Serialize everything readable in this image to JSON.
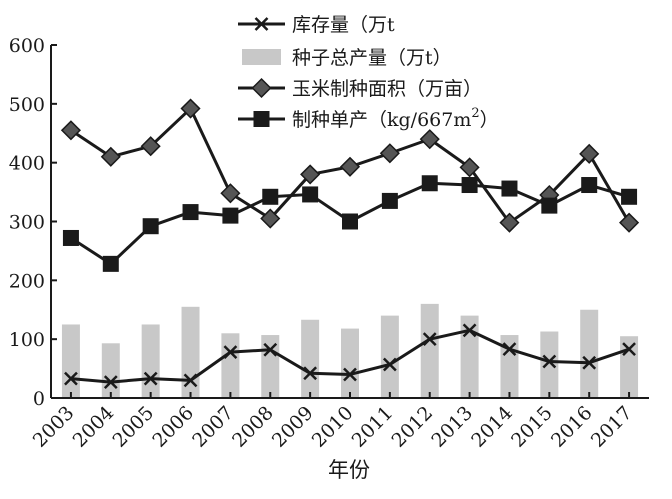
{
  "chart_data": {
    "type": "bar",
    "categories": [
      "2003",
      "2004",
      "2005",
      "2006",
      "2007",
      "2008",
      "2009",
      "2010",
      "2011",
      "2012",
      "2013",
      "2014",
      "2015",
      "2016",
      "2017"
    ],
    "xlabel": "年份",
    "ylabel": "",
    "ylim": [
      0,
      600
    ],
    "yticks": [
      "0",
      "100",
      "200",
      "300",
      "400",
      "500",
      "600"
    ],
    "grid": false,
    "legend_position": "top-center",
    "series": [
      {
        "name": "库存量（万t",
        "type": "line",
        "marker": "x",
        "color": "#1a1a1a",
        "values": [
          33,
          27,
          33,
          30,
          78,
          82,
          42,
          40,
          57,
          100,
          115,
          83,
          62,
          60,
          83
        ]
      },
      {
        "name": "种子总产量（万t）",
        "type": "bar",
        "color": "#c8c8c8",
        "values": [
          125,
          93,
          125,
          155,
          110,
          107,
          133,
          118,
          140,
          160,
          140,
          107,
          113,
          150,
          105
        ]
      },
      {
        "name": "玉米制种面积（万亩）",
        "type": "line",
        "marker": "diamond",
        "color": "#1a1a1a",
        "values": [
          455,
          410,
          428,
          492,
          348,
          305,
          380,
          393,
          416,
          440,
          392,
          298,
          345,
          415,
          298
        ]
      },
      {
        "name": "制种单产（kg/667m",
        "name_sup": "2",
        "name_tail": "）",
        "type": "line",
        "marker": "square",
        "color": "#1a1a1a",
        "values": [
          272,
          228,
          292,
          316,
          310,
          342,
          346,
          300,
          335,
          365,
          362,
          356,
          327,
          362,
          342
        ]
      }
    ]
  }
}
